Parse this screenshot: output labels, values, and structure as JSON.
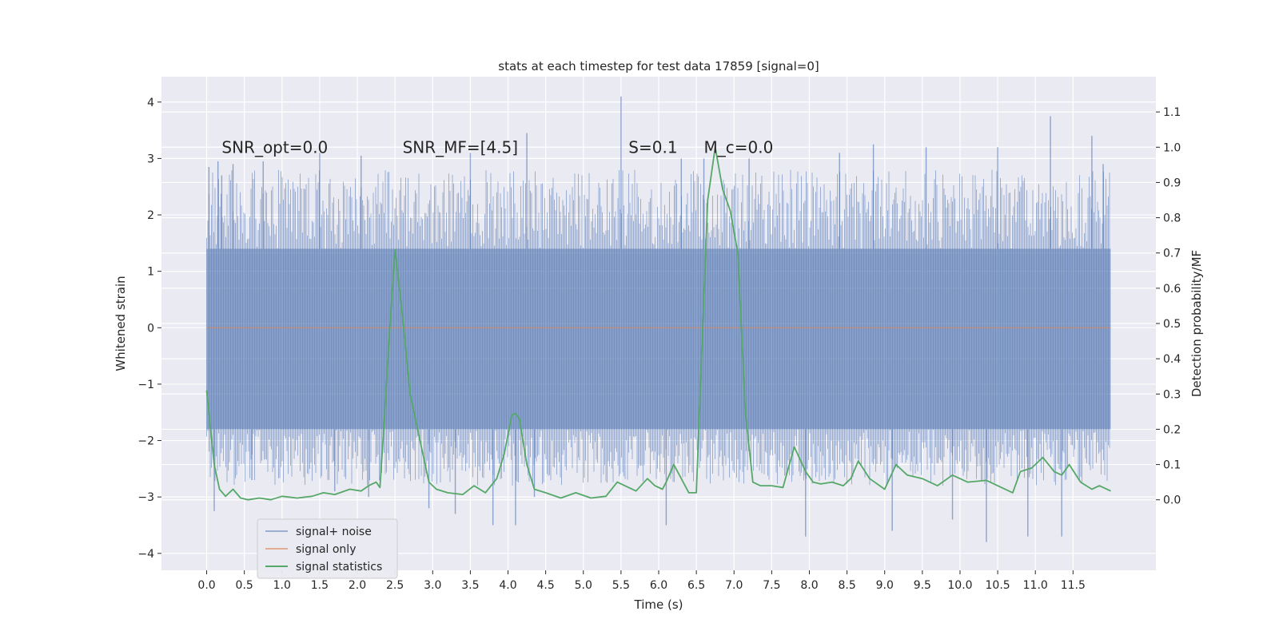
{
  "chart_data": {
    "type": "line",
    "title": "stats at each timestep for test data 17859 [signal=0]",
    "xlabel": "Time (s)",
    "ylabel": "Whitened strain",
    "y2label": "Detection probability/MF",
    "xlim": [
      -0.6,
      12.6
    ],
    "ylim": [
      -4.3,
      4.45
    ],
    "y2lim": [
      -0.2,
      1.2
    ],
    "x_ticks": [
      "0.0",
      "0.5",
      "1.0",
      "1.5",
      "2.0",
      "2.5",
      "3.0",
      "3.5",
      "4.0",
      "4.5",
      "5.0",
      "5.5",
      "6.0",
      "6.5",
      "7.0",
      "7.5",
      "8.0",
      "8.5",
      "9.0",
      "9.5",
      "10.0",
      "10.5",
      "11.0",
      "11.5"
    ],
    "y_ticks": [
      -4,
      -3,
      -2,
      -1,
      0,
      1,
      2,
      3,
      4
    ],
    "y2_ticks": [
      "0.0",
      "0.1",
      "0.2",
      "0.3",
      "0.4",
      "0.5",
      "0.6",
      "0.7",
      "0.8",
      "0.9",
      "1.0",
      "1.1"
    ],
    "grid": true,
    "legend_position": "lower-left",
    "annotations": [
      {
        "text": "SNR_opt=0.0",
        "x": 0.2,
        "y": 3.2
      },
      {
        "text": "SNR_MF=[4.5]",
        "x": 2.6,
        "y": 3.2
      },
      {
        "text": "S=0.1",
        "x": 5.6,
        "y": 3.2
      },
      {
        "text": "M_c=0.0",
        "x": 6.6,
        "y": 3.2
      }
    ],
    "series": [
      {
        "name": "signal+ noise",
        "color": "#4c72b0",
        "axis": "left",
        "x_range": [
          0.0,
          12.0
        ],
        "band": [
          -1.8,
          1.4
        ],
        "spikes": [
          {
            "x": 0.03,
            "y": 2.85
          },
          {
            "x": 0.1,
            "y": -3.25
          },
          {
            "x": 0.15,
            "y": 2.95
          },
          {
            "x": 0.2,
            "y": 2.7
          },
          {
            "x": 0.35,
            "y": 2.9
          },
          {
            "x": 0.6,
            "y": -2.7
          },
          {
            "x": 0.75,
            "y": 2.95
          },
          {
            "x": 1.5,
            "y": 3.1
          },
          {
            "x": 1.7,
            "y": -2.9
          },
          {
            "x": 2.05,
            "y": 3.05
          },
          {
            "x": 2.15,
            "y": -3.0
          },
          {
            "x": 2.95,
            "y": -3.2
          },
          {
            "x": 3.3,
            "y": -3.3
          },
          {
            "x": 3.5,
            "y": 3.1
          },
          {
            "x": 3.8,
            "y": -3.5
          },
          {
            "x": 4.1,
            "y": -3.5
          },
          {
            "x": 4.25,
            "y": 3.45
          },
          {
            "x": 4.35,
            "y": -3.0
          },
          {
            "x": 5.5,
            "y": 4.1
          },
          {
            "x": 6.1,
            "y": -3.5
          },
          {
            "x": 6.3,
            "y": 3.0
          },
          {
            "x": 6.6,
            "y": 3.0
          },
          {
            "x": 7.2,
            "y": 3.0
          },
          {
            "x": 7.95,
            "y": -3.7
          },
          {
            "x": 8.4,
            "y": 3.1
          },
          {
            "x": 8.85,
            "y": 3.25
          },
          {
            "x": 9.1,
            "y": -3.6
          },
          {
            "x": 9.55,
            "y": 3.2
          },
          {
            "x": 9.9,
            "y": -3.4
          },
          {
            "x": 10.35,
            "y": -3.8
          },
          {
            "x": 10.5,
            "y": 3.2
          },
          {
            "x": 10.9,
            "y": -3.7
          },
          {
            "x": 11.2,
            "y": 3.75
          },
          {
            "x": 11.35,
            "y": -3.7
          },
          {
            "x": 11.75,
            "y": 3.4
          },
          {
            "x": 11.9,
            "y": 2.9
          }
        ]
      },
      {
        "name": "signal only",
        "color": "#dd8452",
        "axis": "left",
        "x": [
          0.0,
          12.0
        ],
        "y": [
          0.0,
          0.0
        ]
      },
      {
        "name": "signal statistics",
        "color": "#55a868",
        "axis": "right",
        "x": [
          0.0,
          0.1,
          0.17,
          0.25,
          0.35,
          0.45,
          0.55,
          0.7,
          0.85,
          1.0,
          1.2,
          1.4,
          1.55,
          1.7,
          1.9,
          2.05,
          2.15,
          2.25,
          2.3,
          2.35,
          2.42,
          2.5,
          2.6,
          2.7,
          2.85,
          2.95,
          3.05,
          3.2,
          3.4,
          3.55,
          3.7,
          3.85,
          3.95,
          4.05,
          4.1,
          4.15,
          4.25,
          4.35,
          4.5,
          4.7,
          4.9,
          5.1,
          5.3,
          5.45,
          5.55,
          5.7,
          5.85,
          5.95,
          6.05,
          6.1,
          6.2,
          6.3,
          6.4,
          6.5,
          6.55,
          6.65,
          6.75,
          6.85,
          6.95,
          7.05,
          7.15,
          7.25,
          7.35,
          7.5,
          7.65,
          7.8,
          7.95,
          8.05,
          8.15,
          8.3,
          8.45,
          8.55,
          8.65,
          8.8,
          9.0,
          9.15,
          9.3,
          9.5,
          9.7,
          9.9,
          10.1,
          10.35,
          10.55,
          10.7,
          10.8,
          10.95,
          11.1,
          11.25,
          11.35,
          11.45,
          11.6,
          11.75,
          11.85,
          12.0
        ],
        "y": [
          0.31,
          0.1,
          0.03,
          0.01,
          0.03,
          0.005,
          0.0,
          0.005,
          0.0,
          0.01,
          0.005,
          0.01,
          0.02,
          0.015,
          0.03,
          0.025,
          0.04,
          0.05,
          0.035,
          0.2,
          0.45,
          0.71,
          0.52,
          0.3,
          0.15,
          0.05,
          0.03,
          0.02,
          0.015,
          0.04,
          0.02,
          0.06,
          0.13,
          0.24,
          0.245,
          0.23,
          0.1,
          0.03,
          0.02,
          0.005,
          0.02,
          0.005,
          0.01,
          0.05,
          0.04,
          0.025,
          0.06,
          0.04,
          0.03,
          0.05,
          0.1,
          0.06,
          0.02,
          0.02,
          0.3,
          0.85,
          1.0,
          0.88,
          0.82,
          0.7,
          0.25,
          0.05,
          0.04,
          0.04,
          0.035,
          0.15,
          0.08,
          0.05,
          0.045,
          0.05,
          0.04,
          0.06,
          0.11,
          0.06,
          0.03,
          0.1,
          0.07,
          0.06,
          0.04,
          0.07,
          0.05,
          0.055,
          0.035,
          0.02,
          0.08,
          0.09,
          0.12,
          0.08,
          0.07,
          0.1,
          0.05,
          0.03,
          0.04,
          0.025
        ]
      }
    ]
  }
}
